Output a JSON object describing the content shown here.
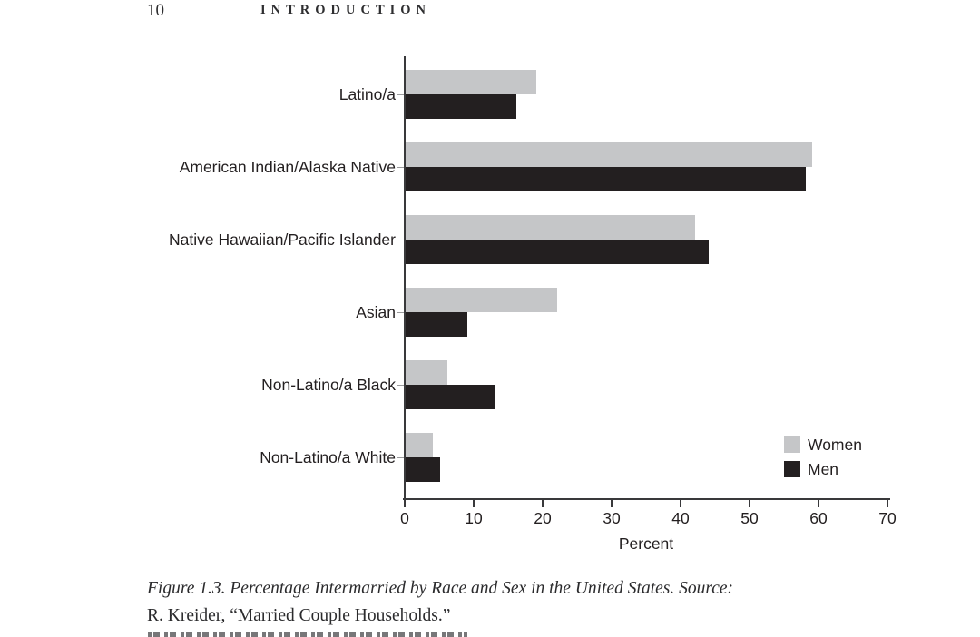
{
  "page": {
    "number": "10",
    "running_head": "INTRODUCTION"
  },
  "caption": {
    "line1": "Figure 1.3.  Percentage Intermarried by Race and Sex in the United States. Source:",
    "line2": "R. Kreider, “Married Couple Households.”"
  },
  "chart_data": {
    "type": "bar",
    "orientation": "horizontal",
    "title": "",
    "xlabel": "Percent",
    "xlim": [
      0,
      70
    ],
    "xticks": [
      0,
      10,
      20,
      30,
      40,
      50,
      60,
      70
    ],
    "grid": false,
    "legend_position": "lower right",
    "categories": [
      "Latino/a",
      "American Indian/Alaska Native",
      "Native Hawaiian/Pacific Islander",
      "Asian",
      "Non-Latino/a Black",
      "Non-Latino/a White"
    ],
    "series": [
      {
        "name": "Women",
        "color": "#c5c6c8",
        "values": [
          19,
          59,
          42,
          22,
          6,
          4
        ]
      },
      {
        "name": "Men",
        "color": "#231f20",
        "values": [
          16,
          58,
          44,
          9,
          13,
          5
        ]
      }
    ]
  },
  "colors": {
    "women_bar": "#c5c6c8",
    "men_bar": "#231f20",
    "axis": "#39393b",
    "text": "#231f20"
  }
}
